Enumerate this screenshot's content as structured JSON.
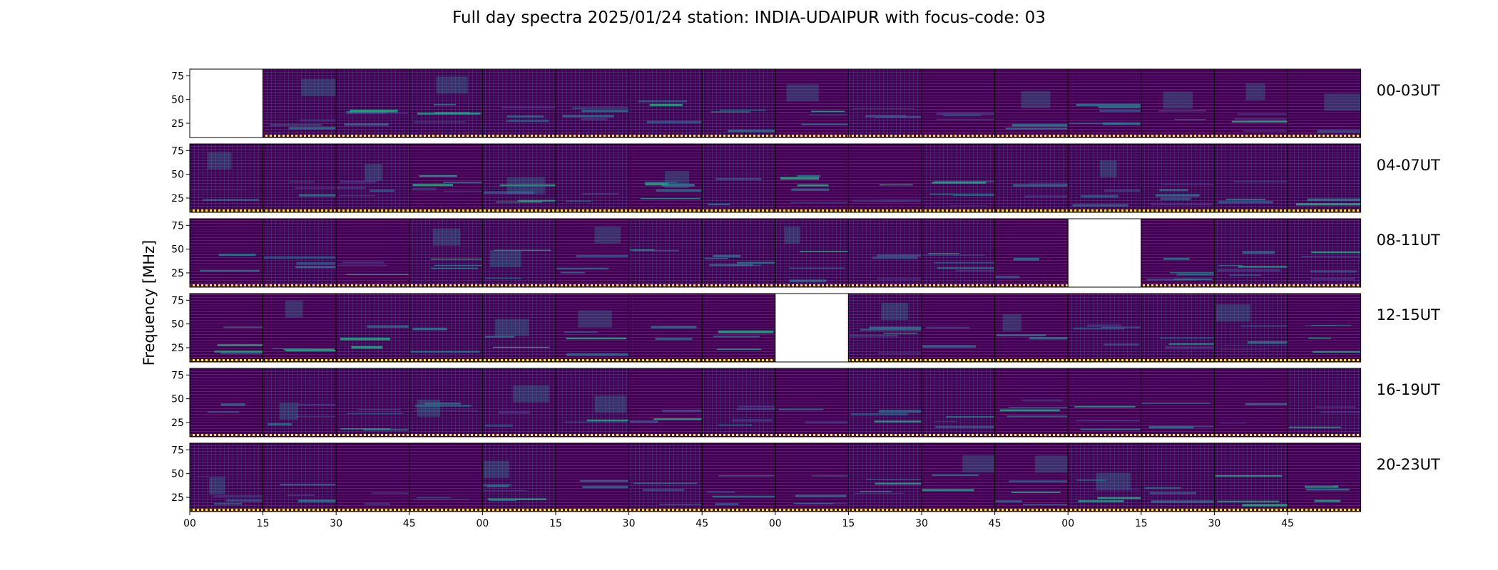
{
  "chart_data": {
    "type": "heatmap",
    "title": "Full day spectra 2025/01/24 station: INDIA-UDAIPUR with focus-code: 03",
    "ylabel": "Frequency [MHz]",
    "xlabel": "",
    "colormap": "viridis",
    "y_ticks": [
      25,
      50,
      75
    ],
    "ylim": [
      10,
      82
    ],
    "x_ticks": [
      "00",
      "15",
      "30",
      "45",
      "00",
      "15",
      "30",
      "45",
      "00",
      "15",
      "30",
      "45",
      "00",
      "15",
      "30",
      "45"
    ],
    "rows": [
      {
        "label": "00-03UT",
        "missing": [
          0
        ]
      },
      {
        "label": "04-07UT",
        "missing": []
      },
      {
        "label": "08-11UT",
        "missing": [
          12
        ]
      },
      {
        "label": "12-15UT",
        "missing": [
          8
        ]
      },
      {
        "label": "16-19UT",
        "missing": []
      },
      {
        "label": "20-23UT",
        "missing": []
      }
    ],
    "panels_per_row": 16,
    "minutes_per_panel": 15,
    "colors": {
      "background": "#440154",
      "low": "#46337e",
      "mid": "#2a788e",
      "high": "#22a884",
      "peak": "#fde725"
    }
  }
}
